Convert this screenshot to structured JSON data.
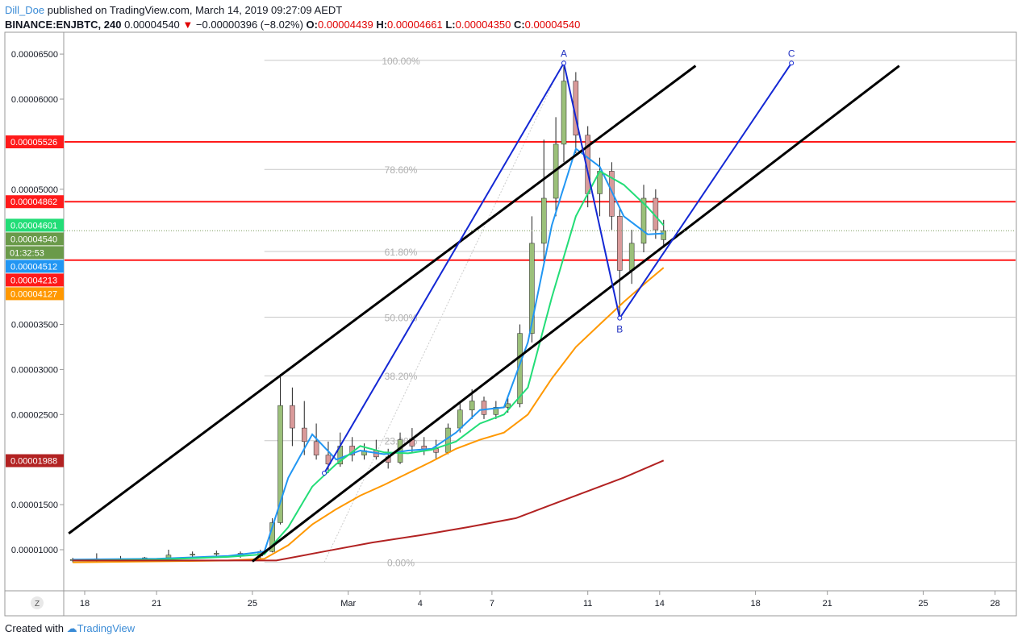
{
  "header": {
    "user": "Dill_Doe",
    "published": "published on TradingView.com, March 14, 2019 09:27:09 AEDT",
    "symbol": "BINANCE:ENJBTC, 240",
    "last": "0.00004540",
    "change": "−0.00000396 (−8.02%)",
    "o_label": "O:",
    "o": "0.00004439",
    "h_label": "H:",
    "h": "0.00004661",
    "l_label": "L:",
    "l": "0.00004350",
    "c_label": "C:",
    "c": "0.00004540"
  },
  "footer": {
    "created_with": "Created with",
    "brand": "TradingView"
  },
  "chart_data": {
    "type": "line",
    "timeframe": "240",
    "x_axis": {
      "tick_labels": [
        "18",
        "21",
        "25",
        "Mar",
        "4",
        "7",
        "11",
        "14",
        "18",
        "21",
        "25",
        "28"
      ],
      "tick_dates": [
        "Feb 18",
        "Feb 21",
        "Feb 25",
        "Mar 1",
        "Mar 4",
        "Mar 7",
        "Mar 11",
        "Mar 14",
        "Mar 18",
        "Mar 21",
        "Mar 25",
        "Mar 28"
      ]
    },
    "y_axis": {
      "tick_labels": [
        "0.00006500",
        "0.00006000",
        "0.00005000",
        "0.00003500",
        "0.00003000",
        "0.00002500",
        "0.00001500",
        "0.00001000"
      ],
      "ticks": [
        6.5e-05,
        6e-05,
        5e-05,
        3.5e-05,
        3e-05,
        2.5e-05,
        1.5e-05,
        1e-05
      ],
      "range": [
        7.7e-06,
        6.72e-05
      ]
    },
    "price_badges": [
      {
        "value": "0.00005526",
        "color": "#ff1a1a"
      },
      {
        "value": "0.00004862",
        "color": "#ff1a1a"
      },
      {
        "value": "0.00004601",
        "color": "#22dd77"
      },
      {
        "value": "0.00004540",
        "color": "#6a9a4a"
      },
      {
        "value": "01:32:53",
        "color": "#6a9a4a",
        "countdown": true
      },
      {
        "value": "0.00004512",
        "color": "#2196f3"
      },
      {
        "value": "0.00004213",
        "color": "#ff1a1a"
      },
      {
        "value": "0.00004127",
        "color": "#ff9800"
      },
      {
        "value": "0.00001988",
        "color": "#b22222"
      }
    ],
    "horizontal_lines": [
      5.526e-05,
      4.862e-05,
      4.213e-05
    ],
    "fib_levels": [
      {
        "label": "100.00%",
        "price": 6.43e-05
      },
      {
        "label": "78.60%",
        "price": 5.22e-05
      },
      {
        "label": "61.80%",
        "price": 4.31e-05
      },
      {
        "label": "50.00%",
        "price": 3.58e-05
      },
      {
        "label": "38.20%",
        "price": 2.93e-05
      },
      {
        "label": "23.60%",
        "price": 2.21e-05
      },
      {
        "label": "0.00%",
        "price": 8.6e-06
      }
    ],
    "abc_pattern": [
      {
        "label": "",
        "date": "Feb 28 00:00",
        "price": 1.85e-05
      },
      {
        "label": "A",
        "date": "Mar 10 00:00",
        "price": 6.4e-05
      },
      {
        "label": "B",
        "date": "Mar 12 08:00",
        "price": 3.57e-05
      },
      {
        "label": "C",
        "date": "Mar 19 12:00",
        "price": 6.4e-05
      }
    ],
    "channel_lines": [
      {
        "from": {
          "date": "Feb 17 08:00",
          "price": 1.18e-05
        },
        "to": {
          "date": "Mar 15 12:00",
          "price": 6.37e-05
        }
      },
      {
        "from": {
          "date": "Feb 25 00:00",
          "price": 8.7e-06
        },
        "to": {
          "date": "Mar 24 00:00",
          "price": 6.37e-05
        }
      }
    ],
    "candles": {
      "columns": [
        "date",
        "open",
        "high",
        "low",
        "close"
      ],
      "rows": [
        [
          "Feb 17 12:00",
          8.8e-06,
          9.1e-06,
          8.6e-06,
          8.9e-06
        ],
        [
          "Feb 18 12:00",
          8.9e-06,
          9.6e-06,
          8.7e-06,
          9e-06
        ],
        [
          "Feb 19 12:00",
          9e-06,
          9.3e-06,
          8.8e-06,
          8.9e-06
        ],
        [
          "Feb 20 12:00",
          8.9e-06,
          9.2e-06,
          8.7e-06,
          9.1e-06
        ],
        [
          "Feb 21 12:00",
          9.1e-06,
          1e-05,
          9e-06,
          9.4e-06
        ],
        [
          "Feb 22 12:00",
          9.4e-06,
          9.8e-06,
          9.1e-06,
          9.5e-06
        ],
        [
          "Feb 23 12:00",
          9.5e-06,
          9.9e-06,
          9.2e-06,
          9.6e-06
        ],
        [
          "Feb 24 12:00",
          9.6e-06,
          9.8e-06,
          9.1e-06,
          9.3e-06
        ],
        [
          "Feb 25 08:00",
          9.3e-06,
          1e-05,
          9e-06,
          9.8e-06
        ],
        [
          "Feb 25 20:00",
          9.8e-06,
          1.35e-05,
          9.7e-06,
          1.3e-05
        ],
        [
          "Feb 26 04:00",
          1.3e-05,
          2.95e-05,
          1.28e-05,
          2.6e-05
        ],
        [
          "Feb 26 16:00",
          2.6e-05,
          2.8e-05,
          2.15e-05,
          2.35e-05
        ],
        [
          "Feb 27 04:00",
          2.35e-05,
          2.65e-05,
          2.05e-05,
          2.2e-05
        ],
        [
          "Feb 27 16:00",
          2.2e-05,
          2.4e-05,
          2e-05,
          2.05e-05
        ],
        [
          "Feb 28 04:00",
          2.05e-05,
          2.2e-05,
          1.85e-05,
          1.95e-05
        ],
        [
          "Feb 28 16:00",
          1.95e-05,
          2.3e-05,
          1.92e-05,
          2.15e-05
        ],
        [
          "Mar 1 04:00",
          2.15e-05,
          2.25e-05,
          1.98e-05,
          2.05e-05
        ],
        [
          "Mar 1 16:00",
          2.05e-05,
          2.18e-05,
          2e-05,
          2.1e-05
        ],
        [
          "Mar 2 04:00",
          2.1e-05,
          2.22e-05,
          2e-05,
          2.03e-05
        ],
        [
          "Mar 2 16:00",
          2.03e-05,
          2.12e-05,
          1.9e-05,
          1.97e-05
        ],
        [
          "Mar 3 04:00",
          1.97e-05,
          2.3e-05,
          1.95e-05,
          2.22e-05
        ],
        [
          "Mar 3 16:00",
          2.22e-05,
          2.35e-05,
          2.08e-05,
          2.15e-05
        ],
        [
          "Mar 4 04:00",
          2.15e-05,
          2.25e-05,
          2.05e-05,
          2.12e-05
        ],
        [
          "Mar 4 16:00",
          2.12e-05,
          2.22e-05,
          2e-05,
          2.08e-05
        ],
        [
          "Mar 5 04:00",
          2.08e-05,
          2.4e-05,
          2.06e-05,
          2.35e-05
        ],
        [
          "Mar 5 16:00",
          2.35e-05,
          2.65e-05,
          2.3e-05,
          2.55e-05
        ],
        [
          "Mar 6 04:00",
          2.55e-05,
          2.78e-05,
          2.45e-05,
          2.65e-05
        ],
        [
          "Mar 6 16:00",
          2.65e-05,
          2.7e-05,
          2.45e-05,
          2.5e-05
        ],
        [
          "Mar 7 04:00",
          2.5e-05,
          2.65e-05,
          2.45e-05,
          2.58e-05
        ],
        [
          "Mar 7 16:00",
          2.58e-05,
          2.68e-05,
          2.52e-05,
          2.62e-05
        ],
        [
          "Mar 8 04:00",
          2.62e-05,
          3.5e-05,
          2.58e-05,
          3.4e-05
        ],
        [
          "Mar 8 16:00",
          3.4e-05,
          4.7e-05,
          3.3e-05,
          4.4e-05
        ],
        [
          "Mar 9 04:00",
          4.4e-05,
          5.55e-05,
          4.2e-05,
          4.9e-05
        ],
        [
          "Mar 9 16:00",
          4.9e-05,
          5.8e-05,
          4.7e-05,
          5.5e-05
        ],
        [
          "Mar 10 00:00",
          5.5e-05,
          6.4e-05,
          5.3e-05,
          6.2e-05
        ],
        [
          "Mar 10 12:00",
          6.2e-05,
          6.3e-05,
          5.4e-05,
          5.6e-05
        ],
        [
          "Mar 11 00:00",
          5.6e-05,
          5.7e-05,
          4.8e-05,
          4.95e-05
        ],
        [
          "Mar 11 12:00",
          4.95e-05,
          5.35e-05,
          4.7e-05,
          5.2e-05
        ],
        [
          "Mar 12 00:00",
          5.2e-05,
          5.3e-05,
          4.55e-05,
          4.7e-05
        ],
        [
          "Mar 12 08:00",
          4.7e-05,
          4.8e-05,
          3.57e-05,
          4.1e-05
        ],
        [
          "Mar 12 20:00",
          4.1e-05,
          4.55e-05,
          3.95e-05,
          4.4e-05
        ],
        [
          "Mar 13 08:00",
          4.4e-05,
          5.05e-05,
          4.3e-05,
          4.9e-05
        ],
        [
          "Mar 13 20:00",
          4.9e-05,
          5e-05,
          4.45e-05,
          4.55e-05
        ],
        [
          "Mar 14 04:00",
          4.44e-05,
          4.66e-05,
          4.35e-05,
          4.54e-05
        ]
      ]
    },
    "moving_averages": [
      {
        "color": "#2196f3",
        "points": [
          [
            "Feb 17 12:00",
            8.9e-06
          ],
          [
            "Feb 21 00:00",
            9e-06
          ],
          [
            "Feb 24 00:00",
            9.3e-06
          ],
          [
            "Feb 25 12:00",
            9.8e-06
          ],
          [
            "Feb 26 12:00",
            1.8e-05
          ],
          [
            "Feb 27 12:00",
            2.28e-05
          ],
          [
            "Feb 28 12:00",
            2e-05
          ],
          [
            "Mar 1 12:00",
            2.1e-05
          ],
          [
            "Mar 2 12:00",
            2.06e-05
          ],
          [
            "Mar 3 12:00",
            2.1e-05
          ],
          [
            "Mar 4 12:00",
            2.12e-05
          ],
          [
            "Mar 5 12:00",
            2.3e-05
          ],
          [
            "Mar 6 12:00",
            2.55e-05
          ],
          [
            "Mar 7 12:00",
            2.58e-05
          ],
          [
            "Mar 8 12:00",
            3.3e-05
          ],
          [
            "Mar 9 12:00",
            4.6e-05
          ],
          [
            "Mar 10 12:00",
            5.45e-05
          ],
          [
            "Mar 11 12:00",
            5.25e-05
          ],
          [
            "Mar 12 12:00",
            4.7e-05
          ],
          [
            "Mar 13 12:00",
            4.5e-05
          ],
          [
            "Mar 14 04:00",
            4.51e-05
          ]
        ]
      },
      {
        "color": "#22dd77",
        "points": [
          [
            "Feb 17 12:00",
            8.8e-06
          ],
          [
            "Feb 21 00:00",
            8.9e-06
          ],
          [
            "Feb 24 00:00",
            9.2e-06
          ],
          [
            "Feb 25 12:00",
            9.5e-06
          ],
          [
            "Feb 26 12:00",
            1.25e-05
          ],
          [
            "Feb 27 12:00",
            1.7e-05
          ],
          [
            "Feb 28 12:00",
            1.95e-05
          ],
          [
            "Mar 1 12:00",
            2.15e-05
          ],
          [
            "Mar 2 12:00",
            2.08e-05
          ],
          [
            "Mar 3 12:00",
            2.07e-05
          ],
          [
            "Mar 4 12:00",
            2.11e-05
          ],
          [
            "Mar 5 12:00",
            2.2e-05
          ],
          [
            "Mar 6 12:00",
            2.4e-05
          ],
          [
            "Mar 7 12:00",
            2.5e-05
          ],
          [
            "Mar 8 12:00",
            2.8e-05
          ],
          [
            "Mar 9 12:00",
            3.8e-05
          ],
          [
            "Mar 10 12:00",
            4.7e-05
          ],
          [
            "Mar 11 12:00",
            5.2e-05
          ],
          [
            "Mar 12 12:00",
            5.05e-05
          ],
          [
            "Mar 13 12:00",
            4.8e-05
          ],
          [
            "Mar 14 04:00",
            4.6e-05
          ]
        ]
      },
      {
        "color": "#ff9800",
        "points": [
          [
            "Feb 17 12:00",
            8.6e-06
          ],
          [
            "Feb 21 00:00",
            8.7e-06
          ],
          [
            "Feb 24 00:00",
            8.8e-06
          ],
          [
            "Feb 25 12:00",
            9e-06
          ],
          [
            "Feb 26 12:00",
            1.05e-05
          ],
          [
            "Feb 27 12:00",
            1.28e-05
          ],
          [
            "Feb 28 12:00",
            1.45e-05
          ],
          [
            "Mar 1 12:00",
            1.6e-05
          ],
          [
            "Mar 2 12:00",
            1.72e-05
          ],
          [
            "Mar 3 12:00",
            1.85e-05
          ],
          [
            "Mar 4 12:00",
            1.98e-05
          ],
          [
            "Mar 5 12:00",
            2.12e-05
          ],
          [
            "Mar 6 12:00",
            2.22e-05
          ],
          [
            "Mar 7 12:00",
            2.3e-05
          ],
          [
            "Mar 8 12:00",
            2.5e-05
          ],
          [
            "Mar 9 12:00",
            2.9e-05
          ],
          [
            "Mar 10 12:00",
            3.25e-05
          ],
          [
            "Mar 11 12:00",
            3.5e-05
          ],
          [
            "Mar 12 12:00",
            3.75e-05
          ],
          [
            "Mar 13 12:00",
            3.98e-05
          ],
          [
            "Mar 14 04:00",
            4.13e-05
          ]
        ]
      },
      {
        "color": "#b22222",
        "points": [
          [
            "Feb 17 12:00",
            8.8e-06
          ],
          [
            "Feb 21 00:00",
            8.8e-06
          ],
          [
            "Feb 24 00:00",
            8.8e-06
          ],
          [
            "Feb 26 00:00",
            8.8e-06
          ],
          [
            "Feb 28 00:00",
            9.8e-06
          ],
          [
            "Mar 2 00:00",
            1.08e-05
          ],
          [
            "Mar 4 00:00",
            1.16e-05
          ],
          [
            "Mar 6 00:00",
            1.25e-05
          ],
          [
            "Mar 8 00:00",
            1.35e-05
          ],
          [
            "Mar 9 12:00",
            1.5e-05
          ],
          [
            "Mar 11 00:00",
            1.65e-05
          ],
          [
            "Mar 12 12:00",
            1.8e-05
          ],
          [
            "Mar 14 04:00",
            1.99e-05
          ]
        ]
      }
    ]
  }
}
